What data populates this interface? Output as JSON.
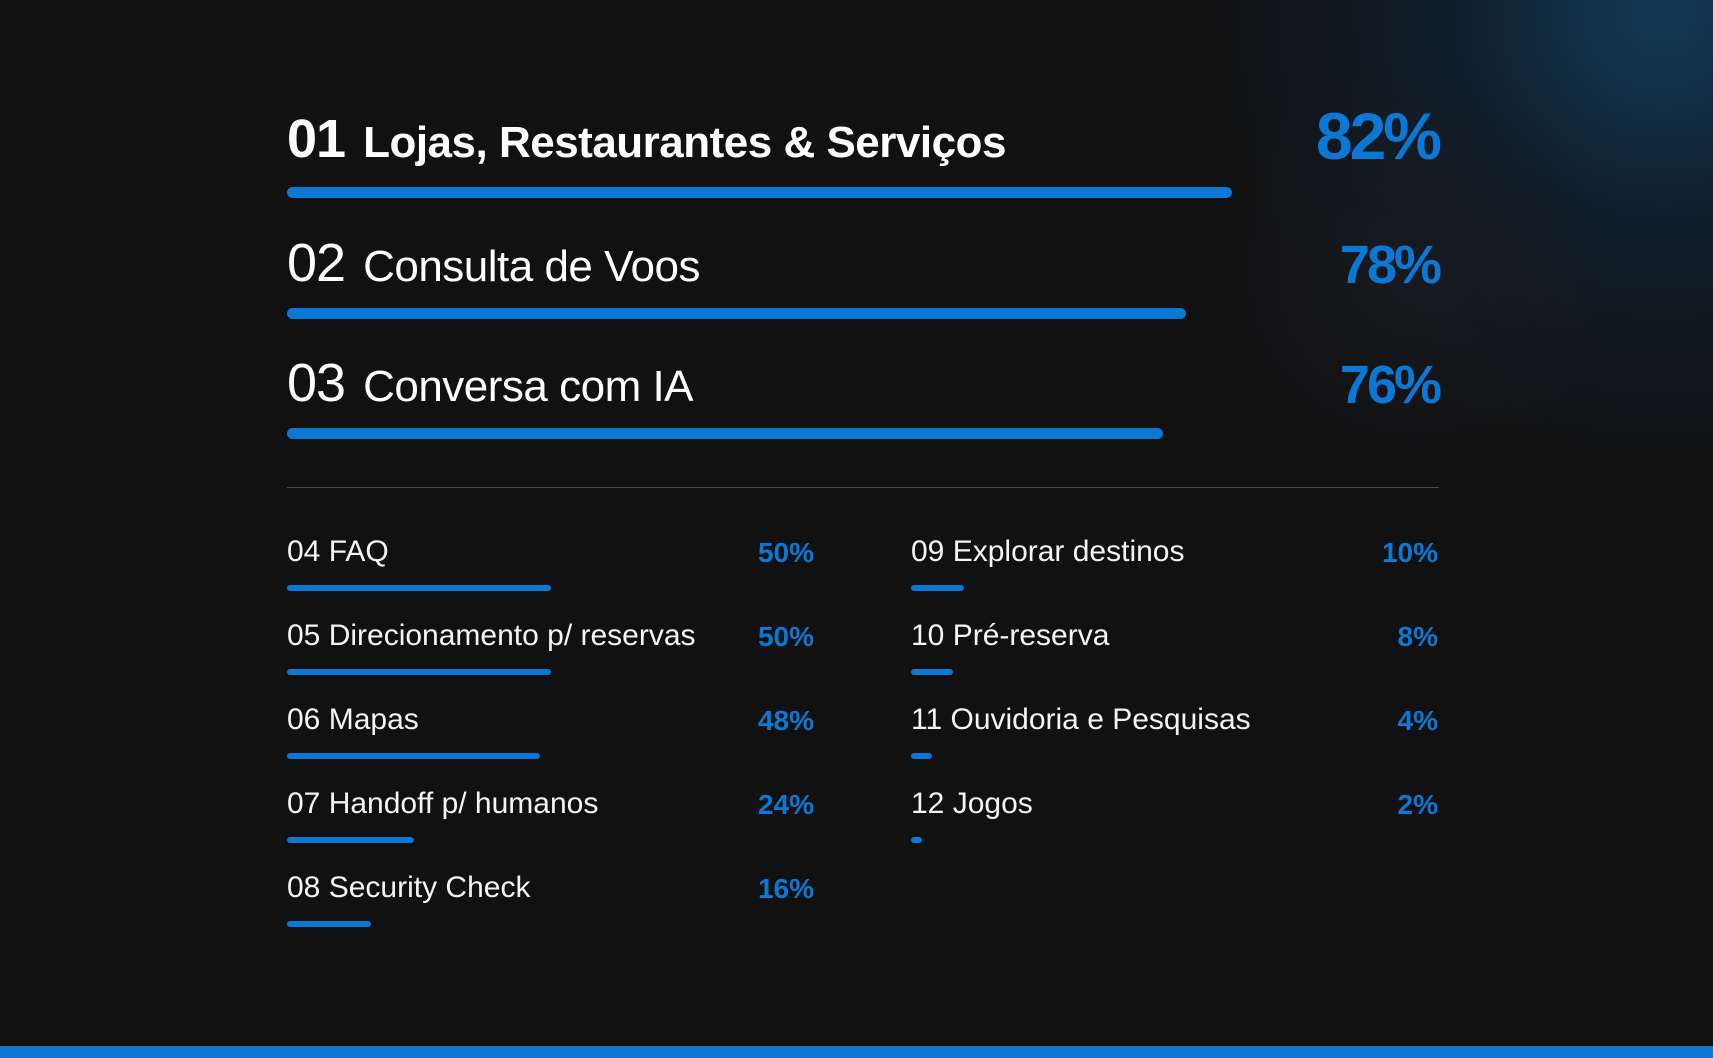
{
  "colors": {
    "background": "#111112",
    "accent": "#0a78d4",
    "text": "#ffffff",
    "divider": "#4a4a4c"
  },
  "chart_data": {
    "type": "bar",
    "orientation": "horizontal",
    "max": 100,
    "top_items": [
      {
        "num": "01",
        "label": "Lojas, Restaurantes & Serviços",
        "value": 82,
        "pct": "82%"
      },
      {
        "num": "02",
        "label": "Consulta de Voos",
        "value": 78,
        "pct": "78%"
      },
      {
        "num": "03",
        "label": "Conversa com IA",
        "value": 76,
        "pct": "76%"
      }
    ],
    "left_items": [
      {
        "text": "04 FAQ",
        "value": 50,
        "pct": "50%"
      },
      {
        "text": "05 Direcionamento p/ reservas",
        "value": 50,
        "pct": "50%"
      },
      {
        "text": "06 Mapas",
        "value": 48,
        "pct": "48%"
      },
      {
        "text": "07 Handoff p/ humanos",
        "value": 24,
        "pct": "24%"
      },
      {
        "text": "08 Security Check",
        "value": 16,
        "pct": "16%"
      }
    ],
    "right_items": [
      {
        "text": "09 Explorar destinos",
        "value": 10,
        "pct": "10%"
      },
      {
        "text": "10 Pré-reserva",
        "value": 8,
        "pct": "8%"
      },
      {
        "text": "11 Ouvidoria e Pesquisas",
        "value": 4,
        "pct": "4%"
      },
      {
        "text": "12 Jogos",
        "value": 2,
        "pct": "2%"
      }
    ]
  }
}
